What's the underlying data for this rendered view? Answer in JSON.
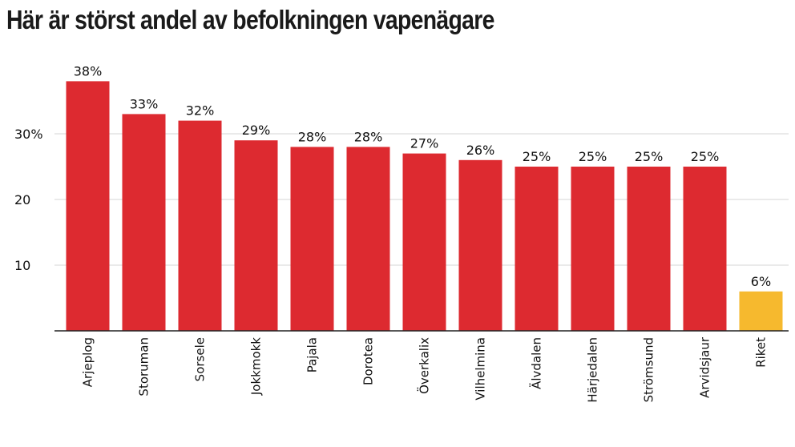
{
  "chart_data": {
    "type": "bar",
    "title": "Här är störst andel av befolkningen vapenägare",
    "categories": [
      "Arjeplog",
      "Storuman",
      "Sorsele",
      "Jokkmokk",
      "Pajala",
      "Dorotea",
      "Överkalix",
      "Vilhelmina",
      "Älvdalen",
      "Härjedalen",
      "Strömsund",
      "Arvidsjaur",
      "Riket"
    ],
    "values": [
      38,
      33,
      32,
      29,
      28,
      28,
      27,
      26,
      25,
      25,
      25,
      25,
      6
    ],
    "value_labels": [
      "38%",
      "33%",
      "32%",
      "29%",
      "28%",
      "28%",
      "27%",
      "26%",
      "25%",
      "25%",
      "25%",
      "25%",
      "6%"
    ],
    "yticks": [
      10,
      20,
      30
    ],
    "ytick_labels": [
      "10",
      "20",
      "30%"
    ],
    "ylim": [
      0,
      40
    ],
    "grid": true,
    "colors": {
      "bar": "#dd2a30",
      "highlight": "#f6b92e",
      "grid": "#d4d4d4",
      "axis": "#222222"
    },
    "highlight_category": "Riket"
  }
}
